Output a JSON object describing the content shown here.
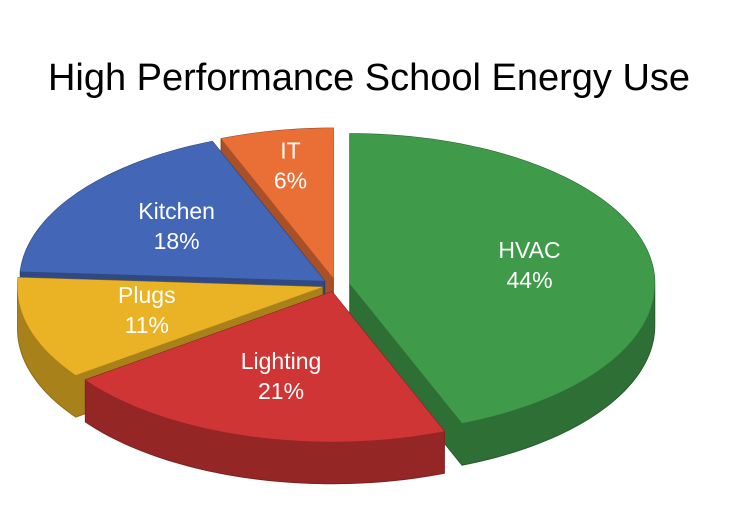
{
  "chart_data": {
    "type": "pie",
    "title": "High Performance School Energy Use",
    "categories": [
      "HVAC",
      "Lighting",
      "Plugs",
      "Kitchen",
      "IT"
    ],
    "values": [
      44,
      21,
      11,
      18,
      6
    ],
    "value_labels": [
      "44%",
      "21%",
      "11%",
      "18%",
      "6%"
    ],
    "colors": [
      "#3f9a4a",
      "#cf3535",
      "#e9b325",
      "#4366b6",
      "#ea6f36"
    ]
  }
}
